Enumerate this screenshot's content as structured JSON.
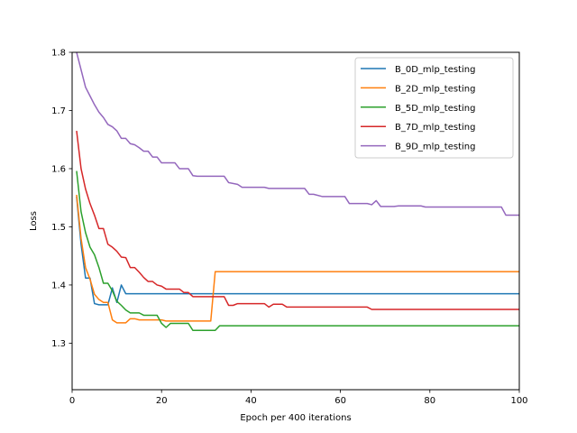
{
  "chart_data": {
    "type": "line",
    "title": "",
    "xlabel": "Epoch per 400 iterations",
    "ylabel": "Loss",
    "xlim": [
      0,
      100
    ],
    "ylim": [
      1.22,
      1.8
    ],
    "xticks": [
      0,
      20,
      40,
      60,
      80,
      100
    ],
    "yticks": [
      1.3,
      1.4,
      1.5,
      1.6,
      1.7,
      1.8
    ],
    "legend_position": "top-right",
    "grid": false,
    "series": [
      {
        "name": "B_0D_mlp_testing",
        "color": "#1f77b4",
        "points": [
          [
            1,
            1.552
          ],
          [
            2,
            1.47
          ],
          [
            3,
            1.412
          ],
          [
            4,
            1.412
          ],
          [
            5,
            1.368
          ],
          [
            6,
            1.366
          ],
          [
            7,
            1.366
          ],
          [
            8,
            1.366
          ],
          [
            9,
            1.395
          ],
          [
            10,
            1.37
          ],
          [
            11,
            1.4
          ],
          [
            12,
            1.385
          ],
          [
            100,
            1.385
          ]
        ]
      },
      {
        "name": "B_2D_mlp_testing",
        "color": "#ff7f0e",
        "points": [
          [
            1,
            1.555
          ],
          [
            2,
            1.48
          ],
          [
            3,
            1.43
          ],
          [
            4,
            1.41
          ],
          [
            5,
            1.384
          ],
          [
            6,
            1.375
          ],
          [
            7,
            1.37
          ],
          [
            8,
            1.37
          ],
          [
            9,
            1.34
          ],
          [
            10,
            1.335
          ],
          [
            11,
            1.335
          ],
          [
            12,
            1.335
          ],
          [
            13,
            1.342
          ],
          [
            14,
            1.342
          ],
          [
            15,
            1.34
          ],
          [
            20,
            1.34
          ],
          [
            21,
            1.338
          ],
          [
            31,
            1.338
          ],
          [
            32,
            1.423
          ],
          [
            100,
            1.423
          ]
        ]
      },
      {
        "name": "B_5D_mlp_testing",
        "color": "#2ca02c",
        "points": [
          [
            1,
            1.596
          ],
          [
            2,
            1.526
          ],
          [
            3,
            1.49
          ],
          [
            4,
            1.465
          ],
          [
            5,
            1.452
          ],
          [
            6,
            1.43
          ],
          [
            7,
            1.403
          ],
          [
            8,
            1.403
          ],
          [
            9,
            1.39
          ],
          [
            10,
            1.372
          ],
          [
            11,
            1.365
          ],
          [
            12,
            1.357
          ],
          [
            13,
            1.352
          ],
          [
            15,
            1.352
          ],
          [
            16,
            1.348
          ],
          [
            19,
            1.348
          ],
          [
            20,
            1.334
          ],
          [
            21,
            1.327
          ],
          [
            22,
            1.334
          ],
          [
            26,
            1.334
          ],
          [
            27,
            1.322
          ],
          [
            32,
            1.322
          ],
          [
            33,
            1.33
          ],
          [
            100,
            1.33
          ]
        ]
      },
      {
        "name": "B_7D_mlp_testing",
        "color": "#d62728",
        "points": [
          [
            1,
            1.665
          ],
          [
            2,
            1.6
          ],
          [
            3,
            1.565
          ],
          [
            4,
            1.54
          ],
          [
            5,
            1.52
          ],
          [
            6,
            1.497
          ],
          [
            7,
            1.497
          ],
          [
            8,
            1.47
          ],
          [
            9,
            1.465
          ],
          [
            10,
            1.458
          ],
          [
            11,
            1.448
          ],
          [
            12,
            1.447
          ],
          [
            13,
            1.43
          ],
          [
            14,
            1.43
          ],
          [
            15,
            1.422
          ],
          [
            16,
            1.413
          ],
          [
            17,
            1.406
          ],
          [
            18,
            1.406
          ],
          [
            19,
            1.4
          ],
          [
            20,
            1.398
          ],
          [
            21,
            1.393
          ],
          [
            24,
            1.393
          ],
          [
            25,
            1.387
          ],
          [
            26,
            1.387
          ],
          [
            27,
            1.38
          ],
          [
            34,
            1.38
          ],
          [
            35,
            1.365
          ],
          [
            36,
            1.365
          ],
          [
            37,
            1.368
          ],
          [
            43,
            1.368
          ],
          [
            44,
            1.362
          ],
          [
            45,
            1.367
          ],
          [
            47,
            1.367
          ],
          [
            48,
            1.362
          ],
          [
            66,
            1.362
          ],
          [
            67,
            1.358
          ],
          [
            100,
            1.358
          ]
        ]
      },
      {
        "name": "B_9D_mlp_testing",
        "color": "#9467bd",
        "points": [
          [
            1,
            1.8
          ],
          [
            2,
            1.77
          ],
          [
            3,
            1.74
          ],
          [
            4,
            1.725
          ],
          [
            5,
            1.71
          ],
          [
            6,
            1.697
          ],
          [
            7,
            1.688
          ],
          [
            8,
            1.676
          ],
          [
            9,
            1.672
          ],
          [
            10,
            1.665
          ],
          [
            11,
            1.652
          ],
          [
            12,
            1.652
          ],
          [
            13,
            1.643
          ],
          [
            14,
            1.641
          ],
          [
            15,
            1.636
          ],
          [
            16,
            1.63
          ],
          [
            17,
            1.63
          ],
          [
            18,
            1.62
          ],
          [
            19,
            1.62
          ],
          [
            20,
            1.61
          ],
          [
            23,
            1.61
          ],
          [
            24,
            1.6
          ],
          [
            26,
            1.6
          ],
          [
            27,
            1.588
          ],
          [
            28,
            1.587
          ],
          [
            34,
            1.587
          ],
          [
            35,
            1.576
          ],
          [
            37,
            1.573
          ],
          [
            38,
            1.568
          ],
          [
            43,
            1.568
          ],
          [
            44,
            1.566
          ],
          [
            52,
            1.566
          ],
          [
            53,
            1.556
          ],
          [
            54,
            1.556
          ],
          [
            56,
            1.552
          ],
          [
            61,
            1.552
          ],
          [
            62,
            1.54
          ],
          [
            66,
            1.54
          ],
          [
            67,
            1.538
          ],
          [
            68,
            1.545
          ],
          [
            69,
            1.535
          ],
          [
            72,
            1.535
          ],
          [
            73,
            1.536
          ],
          [
            78,
            1.536
          ],
          [
            79,
            1.534
          ],
          [
            96,
            1.534
          ],
          [
            97,
            1.52
          ],
          [
            100,
            1.52
          ]
        ]
      }
    ]
  }
}
